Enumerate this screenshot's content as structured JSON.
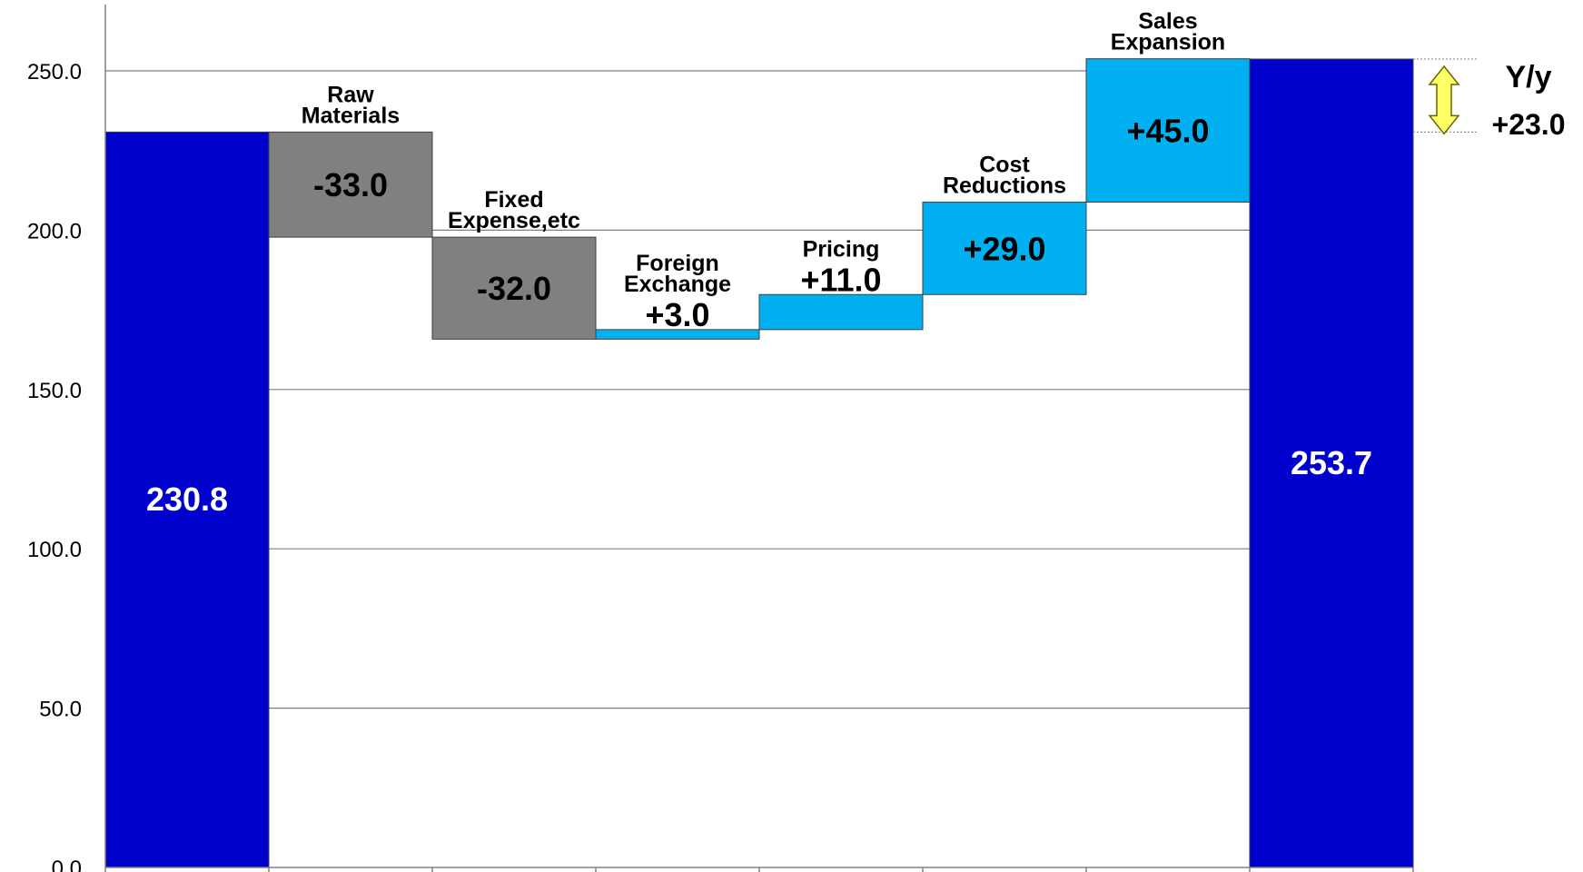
{
  "chart_data": {
    "type": "bar",
    "subtype": "waterfall",
    "ylim": [
      0,
      270
    ],
    "yticks": [
      0,
      50,
      100,
      150,
      200,
      250
    ],
    "ytick_labels": [
      "0.0",
      "50.0",
      "100.0",
      "150.0",
      "200.0",
      "250.0"
    ],
    "grid": true,
    "steps": [
      {
        "kind": "total",
        "category": [],
        "value": 230.8,
        "base": 0,
        "label": "230.8"
      },
      {
        "kind": "negative",
        "category": [
          "Raw",
          "Materials"
        ],
        "value": -33.0,
        "base": 230.8,
        "label": "-33.0"
      },
      {
        "kind": "negative",
        "category": [
          "Fixed",
          "Expense,etc"
        ],
        "value": -32.0,
        "base": 197.8,
        "label": "-32.0"
      },
      {
        "kind": "positive",
        "category": [
          "Foreign",
          "Exchange"
        ],
        "value": 3.0,
        "base": 165.8,
        "label": "+3.0"
      },
      {
        "kind": "positive",
        "category": [
          "Pricing"
        ],
        "value": 11.0,
        "base": 168.8,
        "label": "+11.0"
      },
      {
        "kind": "positive",
        "category": [
          "Cost",
          "Reductions"
        ],
        "value": 29.0,
        "base": 179.8,
        "label": "+29.0"
      },
      {
        "kind": "positive",
        "category": [
          "Sales",
          "Expansion"
        ],
        "value": 45.0,
        "base": 208.8,
        "label": "+45.0"
      },
      {
        "kind": "total",
        "category": [],
        "value": 253.7,
        "base": 0,
        "label": "253.7"
      }
    ],
    "yoy": {
      "title": "Y/y",
      "value_label": "+23.0",
      "from": 230.8,
      "to": 253.7
    },
    "colors": {
      "total": "#0000CC",
      "negative": "#808080",
      "positive": "#00B0F0",
      "grid": "#808080",
      "arrow": "#FFFF66"
    }
  }
}
